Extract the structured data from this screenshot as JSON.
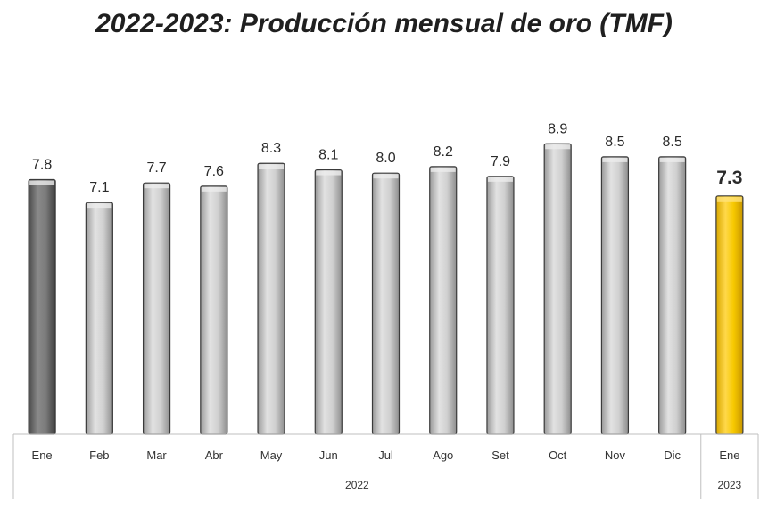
{
  "chart_data": {
    "type": "bar",
    "title": "2022-2023: Producción mensual de oro (TMF)",
    "categories": [
      "Ene",
      "Feb",
      "Mar",
      "Abr",
      "May",
      "Jun",
      "Jul",
      "Ago",
      "Set",
      "Oct",
      "Nov",
      "Dic",
      "Ene"
    ],
    "groups": [
      {
        "label": "2022",
        "count": 12
      },
      {
        "label": "2023",
        "count": 1
      }
    ],
    "series": [
      {
        "values": [
          7.8,
          7.1,
          7.7,
          7.6,
          8.3,
          8.1,
          8.0,
          8.2,
          7.9,
          8.9,
          8.5,
          8.5,
          7.3
        ]
      }
    ],
    "value_labels": [
      "7.8",
      "7.1",
      "7.7",
      "7.6",
      "8.3",
      "8.1",
      "8.0",
      "8.2",
      "7.9",
      "8.9",
      "8.5",
      "8.5",
      "7.3"
    ],
    "bar_colors": [
      "#6e6e6e",
      "#c4c4c4",
      "#c4c4c4",
      "#c4c4c4",
      "#c4c4c4",
      "#c4c4c4",
      "#c4c4c4",
      "#c4c4c4",
      "#c4c4c4",
      "#c4c4c4",
      "#c4c4c4",
      "#c4c4c4",
      "#f2c200"
    ],
    "highlight_index": 12,
    "ylim": [
      0,
      9.5
    ],
    "grid": false
  }
}
